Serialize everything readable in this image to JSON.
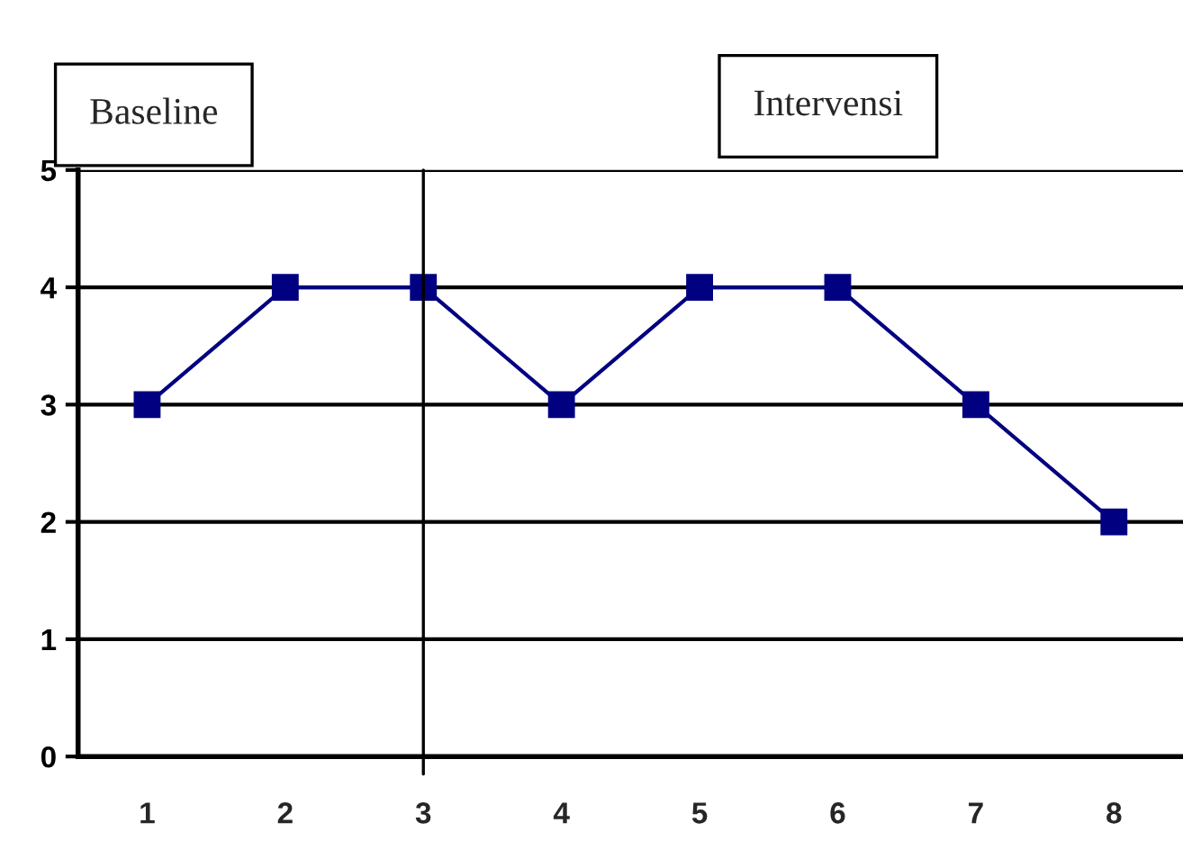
{
  "chart_data": {
    "type": "line",
    "categories": [
      "1",
      "2",
      "3",
      "4",
      "5",
      "6",
      "7",
      "8"
    ],
    "series": [
      {
        "color": "#000080",
        "values": [
          3,
          4,
          4,
          3,
          4,
          4,
          3,
          2
        ]
      }
    ],
    "ylim": [
      0,
      5
    ],
    "yticks": [
      0,
      1,
      2,
      3,
      4,
      5
    ],
    "grid": "y",
    "marker": "square",
    "line_style": "solid",
    "ref_lines": [
      {
        "axis": "x",
        "value": "3",
        "color": "#000000"
      }
    ],
    "annotations": [
      "Baseline",
      "Intervensi"
    ]
  }
}
